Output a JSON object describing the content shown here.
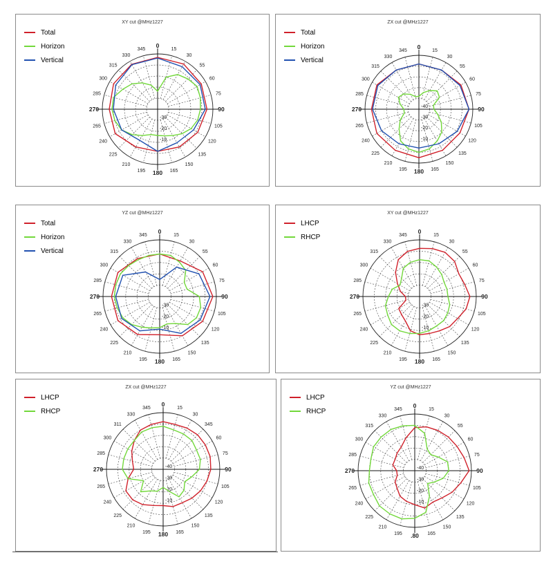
{
  "colors": {
    "total": "#d0202a",
    "horizon": "#72d83a",
    "vertical": "#2050b0",
    "lhcp": "#d0202a",
    "rhcp": "#72d83a"
  },
  "chart_data": [
    {
      "type": "polar-line",
      "title": "XY cut @MHz1227",
      "angle_labels": [
        "0",
        "15",
        "30",
        "55",
        "60",
        "75",
        "90",
        "105",
        "120",
        "135",
        "150",
        "165",
        "180",
        "195",
        "210",
        "225",
        "240",
        "265",
        "270",
        "285",
        "300",
        "315",
        "330",
        "345"
      ],
      "radial_labels": [
        "-10",
        "-20",
        "-30"
      ],
      "rlim": [
        -40,
        0
      ],
      "series": [
        {
          "name": "Total",
          "color_key": "total",
          "angles": [
            0,
            30,
            60,
            90,
            120,
            150,
            180,
            210,
            240,
            270,
            300,
            330
          ],
          "values": [
            -2.5,
            -2.3,
            -3.5,
            -4.3,
            -6.5,
            -8.5,
            -9.5,
            -8.5,
            -4.6,
            -5,
            -3.2,
            -2.5
          ]
        },
        {
          "name": "Horizon",
          "color_key": "horizon",
          "angles": [
            0,
            15,
            30,
            45,
            60,
            75,
            90,
            105,
            120,
            135,
            150,
            165,
            180,
            195,
            210,
            225,
            240,
            255,
            270,
            285,
            300,
            315,
            330,
            345
          ],
          "values": [
            -27,
            -16,
            -11,
            -9,
            -7,
            -8,
            -9,
            -10,
            -12,
            -15,
            -18,
            -20,
            -21,
            -21,
            -18,
            -14,
            -10,
            -8,
            -7,
            -7,
            -11,
            -14,
            -18,
            -22
          ]
        },
        {
          "name": "Vertical",
          "color_key": "vertical",
          "angles": [
            0,
            30,
            60,
            90,
            120,
            150,
            180,
            210,
            240,
            270,
            300,
            330
          ],
          "values": [
            -3,
            -4.5,
            -4.5,
            -5.5,
            -10,
            -12,
            -9.5,
            -14,
            -10,
            -8,
            -5,
            -2.8
          ]
        }
      ]
    },
    {
      "type": "polar-line",
      "title": "ZX cut @MHz1227",
      "angle_labels": [
        "0",
        "15",
        "30",
        "55",
        "60",
        "75",
        "90",
        "105",
        "120",
        "135",
        "150",
        "165",
        "180",
        "195",
        "210",
        "225",
        "240",
        "265",
        "270",
        "285",
        "300",
        "315",
        "330",
        "345"
      ],
      "radial_labels": [
        "-10",
        "-20",
        "-30",
        "-40"
      ],
      "rlim": [
        -50,
        0
      ],
      "series": [
        {
          "name": "Total",
          "color_key": "total",
          "angles": [
            0,
            30,
            60,
            90,
            120,
            150,
            180,
            210,
            240,
            270,
            300,
            330
          ],
          "values": [
            -8,
            -8,
            -5,
            -3.5,
            -6,
            -6,
            -5,
            -6,
            -5,
            -6,
            -5,
            -8
          ]
        },
        {
          "name": "Horizon",
          "color_key": "horizon",
          "angles": [
            0,
            15,
            30,
            45,
            60,
            75,
            90,
            105,
            120,
            135,
            150,
            165,
            180,
            195,
            210,
            225,
            240,
            255,
            270,
            285,
            300,
            315,
            330,
            345
          ],
          "values": [
            -38,
            -34,
            -30,
            -26,
            -28,
            -36,
            -36,
            -32,
            -26,
            -20,
            -16,
            -12,
            -10,
            -12,
            -16,
            -24,
            -30,
            -36,
            -36,
            -32,
            -28,
            -30,
            -34,
            -38
          ]
        },
        {
          "name": "Vertical",
          "color_key": "vertical",
          "angles": [
            0,
            30,
            60,
            90,
            120,
            150,
            180,
            210,
            240,
            270,
            300,
            330
          ],
          "values": [
            -8,
            -8,
            -6,
            -3.5,
            -9,
            -13,
            -14,
            -13,
            -10,
            -7,
            -6,
            -8
          ]
        }
      ]
    },
    {
      "type": "polar-line",
      "title": "YZ cut @MHz1227",
      "angle_labels": [
        "0",
        "15",
        "30",
        "55",
        "60",
        "75",
        "90",
        "105",
        "120",
        "135",
        "150",
        "165",
        "180",
        "195",
        "210",
        "225",
        "240",
        "265",
        "270",
        "285",
        "300",
        "315",
        "330",
        "345"
      ],
      "radial_labels": [
        "-10",
        "-20",
        "-30"
      ],
      "rlim": [
        -40,
        0
      ],
      "series": [
        {
          "name": "Total",
          "color_key": "total",
          "angles": [
            0,
            30,
            60,
            90,
            120,
            150,
            180,
            210,
            240,
            270,
            300,
            330
          ],
          "values": [
            -10,
            -11,
            -5,
            -2.5,
            -5,
            -8,
            -13,
            -9,
            -6,
            -6,
            -6,
            -9
          ]
        },
        {
          "name": "Horizon",
          "color_key": "horizon",
          "angles": [
            0,
            15,
            30,
            45,
            60,
            75,
            90,
            105,
            120,
            135,
            150,
            165,
            180,
            195,
            210,
            225,
            240,
            255,
            270,
            285,
            300,
            315,
            330,
            345
          ],
          "values": [
            -10,
            -10,
            -12,
            -14,
            -20,
            -20,
            -12,
            -10,
            -10,
            -12,
            -18,
            -20,
            -18,
            -17,
            -15,
            -12,
            -10,
            -9,
            -8,
            -8,
            -8,
            -9,
            -10,
            -10
          ]
        },
        {
          "name": "Vertical",
          "color_key": "vertical",
          "angles": [
            0,
            30,
            60,
            90,
            120,
            150,
            180,
            210,
            240,
            270,
            300,
            330
          ],
          "values": [
            -28,
            -16,
            -8,
            -4.5,
            -7,
            -10,
            -17,
            -12,
            -9,
            -9,
            -10,
            -20
          ]
        }
      ]
    },
    {
      "type": "polar-line",
      "title": "XY cut @MHz1227",
      "angle_labels": [
        "0",
        "15",
        "30",
        "55",
        "60",
        "75",
        "90",
        "105",
        "120",
        "135",
        "150",
        "165",
        "180",
        "195",
        "210",
        "225",
        "240",
        "265",
        "270",
        "285",
        "300",
        "315",
        "330",
        "345"
      ],
      "radial_labels": [
        "-10",
        "-20",
        "-30"
      ],
      "rlim": [
        -40,
        0
      ],
      "series": [
        {
          "name": "LHCP",
          "color_key": "lhcp",
          "angles": [
            0,
            15,
            30,
            45,
            60,
            75,
            90,
            105,
            120,
            135,
            150,
            165,
            180,
            195,
            210,
            225,
            240,
            255,
            270,
            285,
            300,
            315,
            330,
            345
          ],
          "values": [
            -6,
            -5,
            -4,
            -5,
            -8,
            -7,
            -4.5,
            -6,
            -9,
            -10,
            -12,
            -13,
            -13,
            -15,
            -20,
            -22,
            -23,
            -30,
            -30,
            -26,
            -22,
            -16,
            -10,
            -7
          ]
        },
        {
          "name": "RHCP",
          "color_key": "rhcp",
          "angles": [
            0,
            15,
            30,
            45,
            60,
            75,
            90,
            105,
            120,
            135,
            150,
            165,
            180,
            195,
            210,
            225,
            240,
            255,
            270,
            285,
            300,
            315,
            330,
            345
          ],
          "values": [
            -14,
            -14,
            -16,
            -18,
            -20,
            -20,
            -20,
            -18,
            -17,
            -16,
            -16,
            -15,
            -14,
            -13,
            -12,
            -12,
            -14,
            -15,
            -18,
            -20,
            -24,
            -22,
            -17,
            -15
          ]
        }
      ]
    },
    {
      "type": "polar-line",
      "title": "ZX cut @MHz1227",
      "angle_labels": [
        "0",
        "15",
        "30",
        "345",
        "60",
        "75",
        "90",
        "105",
        "120",
        "135",
        "150",
        "165",
        "180",
        "195",
        "210",
        "225",
        "240",
        "265",
        "270",
        "285",
        "300",
        "311",
        "330",
        "345"
      ],
      "radial_labels": [
        "-10",
        "-20",
        "-30",
        "-40"
      ],
      "rlim": [
        -50,
        0
      ],
      "series": [
        {
          "name": "LHCP",
          "color_key": "lhcp",
          "angles": [
            0,
            15,
            30,
            45,
            60,
            75,
            90,
            105,
            120,
            135,
            150,
            165,
            180,
            195,
            210,
            225,
            240,
            255,
            270,
            285,
            300,
            315,
            330,
            345
          ],
          "values": [
            -8,
            -9,
            -8,
            -7,
            -7,
            -7,
            -8,
            -10,
            -12,
            -14,
            -16,
            -16,
            -18,
            -17,
            -14,
            -12,
            -12,
            -18,
            -24,
            -22,
            -18,
            -14,
            -10,
            -9
          ]
        },
        {
          "name": "RHCP",
          "color_key": "rhcp",
          "angles": [
            0,
            15,
            30,
            45,
            60,
            75,
            90,
            105,
            120,
            135,
            150,
            165,
            180,
            195,
            210,
            225,
            240,
            255,
            270,
            285,
            300,
            315,
            330,
            345
          ],
          "values": [
            -12,
            -14,
            -14,
            -14,
            -16,
            -16,
            -18,
            -24,
            -28,
            -24,
            -22,
            -30,
            -34,
            -30,
            -28,
            -22,
            -30,
            -18,
            -14,
            -14,
            -14,
            -14,
            -12,
            -12
          ]
        }
      ]
    },
    {
      "type": "polar-line",
      "title": "YZ cut @MHz1227",
      "angle_labels": [
        "0",
        "15",
        "30",
        "55",
        "60",
        "75",
        "90",
        "105",
        "120",
        "135",
        "150",
        "165",
        ".80",
        "195",
        "210",
        "225",
        "240",
        "265",
        "270",
        "285",
        "300",
        "315",
        "330",
        "345"
      ],
      "radial_labels": [
        "-10",
        "-20",
        "-30",
        "-40"
      ],
      "rlim": [
        -50,
        0
      ],
      "series": [
        {
          "name": "LHCP",
          "color_key": "lhcp",
          "angles": [
            0,
            15,
            30,
            45,
            60,
            75,
            90,
            105,
            120,
            135,
            150,
            165,
            180,
            195,
            210,
            225,
            240,
            255,
            270,
            285,
            300,
            315,
            330,
            345
          ],
          "values": [
            -12,
            -10,
            -9,
            -8,
            -7,
            -5,
            -2,
            -8,
            -12,
            -16,
            -18,
            -16,
            -20,
            -22,
            -24,
            -28,
            -30,
            -34,
            -34,
            -30,
            -30,
            -28,
            -26,
            -20
          ]
        },
        {
          "name": "RHCP",
          "color_key": "rhcp",
          "angles": [
            0,
            15,
            30,
            45,
            60,
            75,
            90,
            105,
            120,
            135,
            150,
            165,
            180,
            195,
            210,
            225,
            240,
            255,
            270,
            285,
            300,
            315,
            330,
            345
          ],
          "values": [
            -10,
            -16,
            -28,
            -30,
            -26,
            -20,
            -20,
            -24,
            -30,
            -34,
            -24,
            -12,
            -8,
            -6,
            -6,
            -6,
            -8,
            -8,
            -10,
            -10,
            -8,
            -8,
            -8,
            -9
          ]
        }
      ]
    }
  ]
}
